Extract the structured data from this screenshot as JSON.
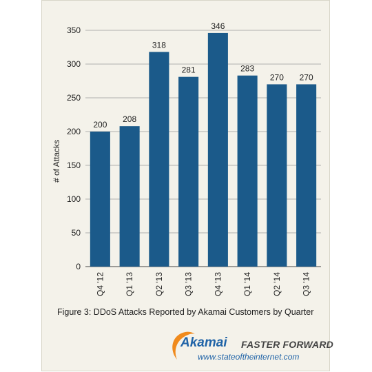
{
  "chart_data": {
    "type": "bar",
    "categories": [
      "Q4 '12",
      "Q1 '13",
      "Q2 '13",
      "Q3 '13",
      "Q4 '13",
      "Q1 '14",
      "Q2 '14",
      "Q3 '14"
    ],
    "values": [
      200,
      208,
      318,
      281,
      346,
      283,
      270,
      270
    ],
    "xlabel": "",
    "ylabel": "# of Attacks",
    "ylim": [
      0,
      350
    ],
    "yticks": [
      0,
      50,
      100,
      150,
      200,
      250,
      300,
      350
    ],
    "grid": true,
    "bar_color": "#1b5a8a",
    "caption": "Figure 3: DDoS Attacks Reported by Akamai Customers by Quarter"
  },
  "footer": {
    "brand": "Akamai",
    "tagline": "FASTER FORWARD",
    "url": "www.stateoftheinternet.com",
    "brand_color": "#1f63a7",
    "swoosh_color": "#f08a1c"
  }
}
